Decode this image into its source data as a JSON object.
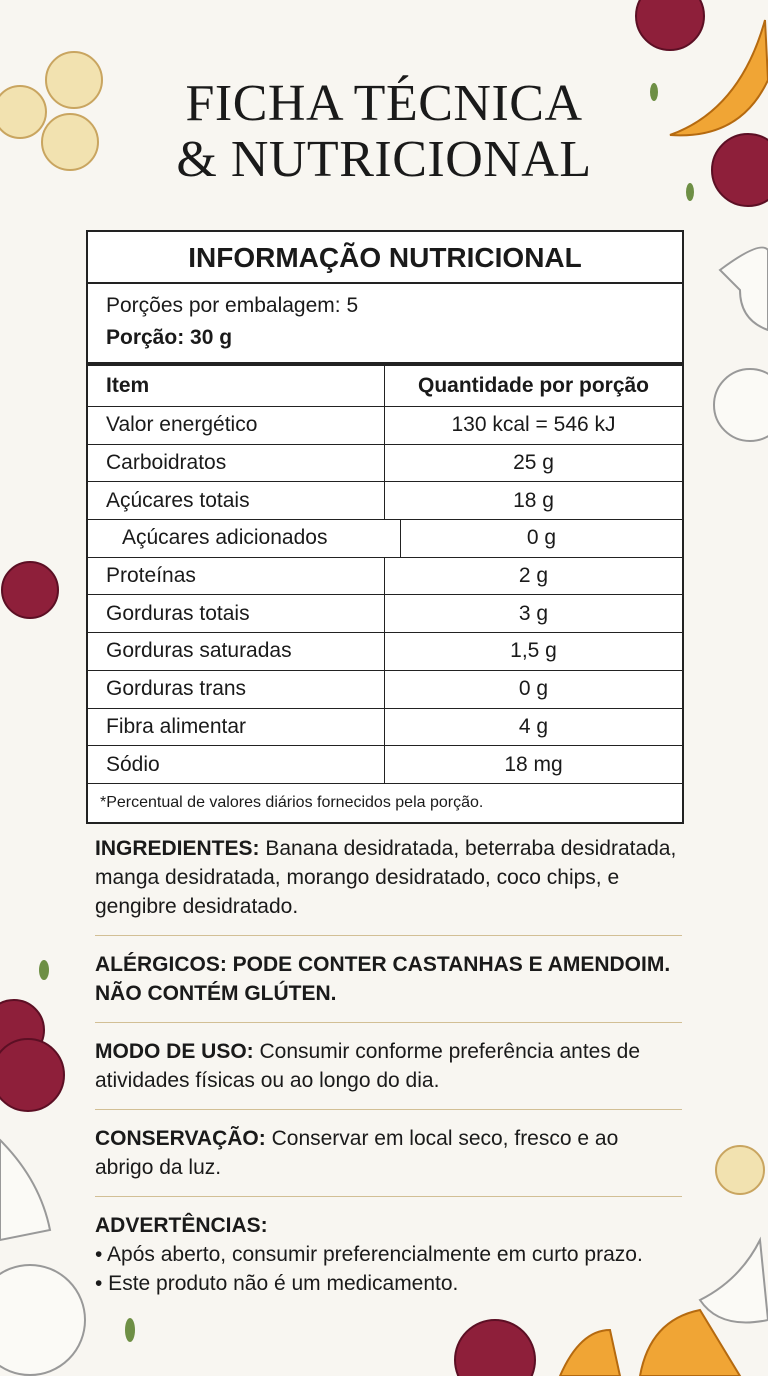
{
  "title": {
    "lines": [
      "FICHA TÉCNICA",
      "& NUTRICIONAL"
    ]
  },
  "nutrition_table": {
    "heading": "INFORMAÇÃO NUTRICIONAL",
    "servings": "Porções por embalagem: 5",
    "portion": "Porção: 30 g",
    "columns": [
      "Item",
      "Quantidade por porção"
    ],
    "rows": [
      [
        "Valor energético",
        "130 kcal = 546 kJ"
      ],
      [
        "Carboidratos",
        "25 g"
      ],
      [
        "Açúcares totais",
        "18 g"
      ],
      [
        "Açúcares adicionados",
        "0 g"
      ],
      [
        "Proteínas",
        "2 g"
      ],
      [
        "Gorduras totais",
        "3 g"
      ],
      [
        "Gorduras saturadas",
        "1,5 g"
      ],
      [
        "Gorduras trans",
        "0 g"
      ],
      [
        "Fibra alimentar",
        "4 g"
      ],
      [
        "Sódio",
        "18 mg"
      ]
    ],
    "footnote": "*Percentual de valores diários fornecidos pela porção."
  },
  "sections": [
    {
      "label": "INGREDIENTES:",
      "text": "Banana desidratada, beterraba desidratada, manga desidratada, morango desidratado, coco chips, e gengibre desidratado."
    },
    {
      "label": "ALÉRGICOS: PODE CONTER CASTANHAS E AMENDOIM. NÃO CONTÉM GLÚTEN."
    },
    {
      "label": "MODO DE USO:",
      "text": "Consumir conforme preferência antes de atividades físicas ou ao longo do dia."
    },
    {
      "label": "CONSERVAÇÃO:",
      "text": "Conservar em local seco, fresco e ao abrigo da luz."
    },
    {
      "label": "ADVERTÊNCIAS:",
      "items": [
        "• Após aberto, consumir preferencialmente em curto prazo.",
        "• Este produto não é um medicamento."
      ]
    }
  ]
}
